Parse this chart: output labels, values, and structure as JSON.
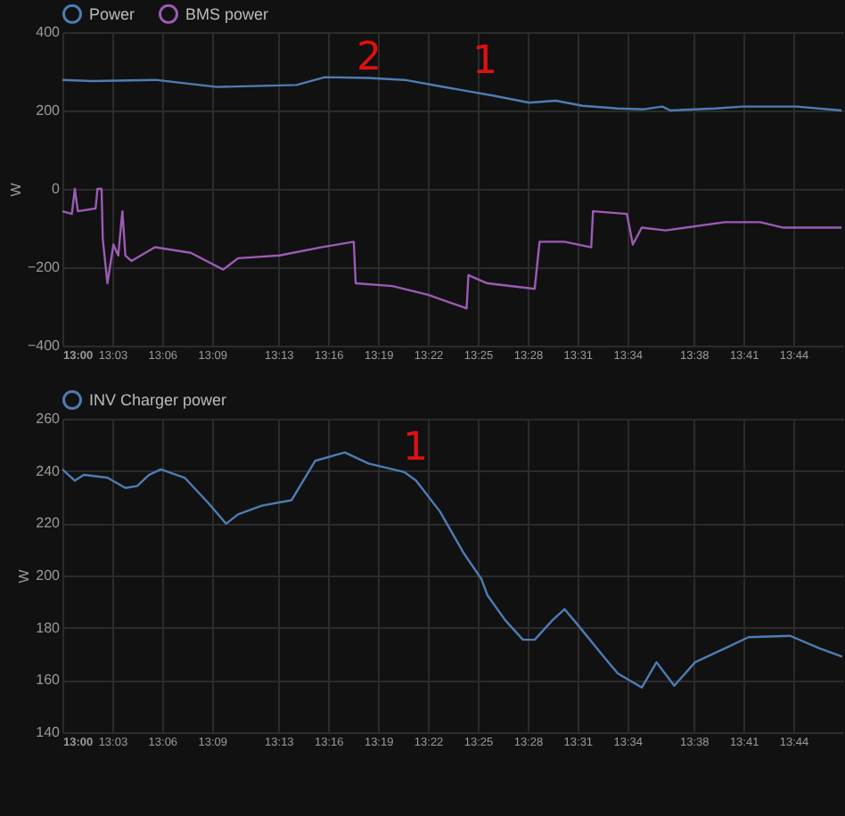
{
  "chart_data": [
    {
      "type": "line",
      "ylabel": "W",
      "annotations": [
        "2",
        "1"
      ],
      "legend": "top",
      "grid": true,
      "xlim": [
        13,
        13.7833
      ],
      "ylim": [
        -400,
        400
      ],
      "yticks": [
        -400,
        -200,
        0,
        200,
        400
      ],
      "xticks": [
        {
          "value": 13,
          "label": "13:00"
        },
        {
          "value": 13.05,
          "label": "13:03"
        },
        {
          "value": 13.1,
          "label": "13:06"
        },
        {
          "value": 13.15,
          "label": "13:09"
        },
        {
          "value": 13.2167,
          "label": "13:13"
        },
        {
          "value": 13.2667,
          "label": "13:16"
        },
        {
          "value": 13.3167,
          "label": "13:19"
        },
        {
          "value": 13.3667,
          "label": "13:22"
        },
        {
          "value": 13.4167,
          "label": "13:25"
        },
        {
          "value": 13.4667,
          "label": "13:28"
        },
        {
          "value": 13.5167,
          "label": "13:31"
        },
        {
          "value": 13.5667,
          "label": "13:34"
        },
        {
          "value": 13.6333,
          "label": "13:38"
        },
        {
          "value": 13.6833,
          "label": "13:41"
        },
        {
          "value": 13.7333,
          "label": "13:44"
        }
      ],
      "series": [
        {
          "name": "Power",
          "color": "#4d7db5",
          "x": [
            13,
            13.03,
            13.0933,
            13.155,
            13.235,
            13.2633,
            13.3067,
            13.3433,
            13.3783,
            13.4317,
            13.4683,
            13.495,
            13.5217,
            13.5567,
            13.5833,
            13.6017,
            13.61,
            13.655,
            13.6817,
            13.7367,
            13.7817
          ],
          "values": [
            278,
            275,
            278,
            260,
            265,
            285,
            283,
            278,
            262,
            238,
            220,
            225,
            212,
            205,
            203,
            210,
            200,
            205,
            210,
            210,
            200
          ]
        },
        {
          "name": "BMS power",
          "color": "#9c5bb5",
          "x": [
            13,
            13.0095,
            13.0125,
            13.0155,
            13.0333,
            13.0352,
            13.0393,
            13.0405,
            13.0452,
            13.0512,
            13.056,
            13.0602,
            13.0632,
            13.0692,
            13.0928,
            13.1287,
            13.1613,
            13.1762,
            13.2178,
            13.2595,
            13.2923,
            13.2942,
            13.331,
            13.3667,
            13.4055,
            13.4073,
            13.4263,
            13.4738,
            13.4787,
            13.5037,
            13.5305,
            13.5323,
            13.5663,
            13.5722,
            13.5812,
            13.605,
            13.6645,
            13.7,
            13.7233,
            13.7817
          ],
          "values": [
            -57,
            -64,
            0,
            -57,
            -50,
            0,
            0,
            -128,
            -241,
            -142,
            -170,
            -57,
            -170,
            -184,
            -149,
            -163,
            -206,
            -177,
            -170,
            -149,
            -135,
            -241,
            -248,
            -270,
            -305,
            -220,
            -241,
            -255,
            -135,
            -135,
            -149,
            -57,
            -64,
            -142,
            -99,
            -106,
            -85,
            -85,
            -99,
            -99
          ]
        }
      ]
    },
    {
      "type": "line",
      "ylabel": "W",
      "annotations": [
        "1"
      ],
      "legend": "top",
      "grid": true,
      "xlim": [
        13,
        13.7833
      ],
      "ylim": [
        140,
        260
      ],
      "yticks": [
        140,
        160,
        180,
        200,
        220,
        240,
        260
      ],
      "xticks": [
        {
          "value": 13,
          "label": "13:00"
        },
        {
          "value": 13.05,
          "label": "13:03"
        },
        {
          "value": 13.1,
          "label": "13:06"
        },
        {
          "value": 13.15,
          "label": "13:09"
        },
        {
          "value": 13.2167,
          "label": "13:13"
        },
        {
          "value": 13.2667,
          "label": "13:16"
        },
        {
          "value": 13.3167,
          "label": "13:19"
        },
        {
          "value": 13.3667,
          "label": "13:22"
        },
        {
          "value": 13.4167,
          "label": "13:25"
        },
        {
          "value": 13.4667,
          "label": "13:28"
        },
        {
          "value": 13.5167,
          "label": "13:31"
        },
        {
          "value": 13.5667,
          "label": "13:34"
        },
        {
          "value": 13.6333,
          "label": "13:38"
        },
        {
          "value": 13.6833,
          "label": "13:41"
        },
        {
          "value": 13.7333,
          "label": "13:44"
        }
      ],
      "series": [
        {
          "name": "INV Charger power",
          "color": "#4d7db5",
          "x": [
            13,
            13.0125,
            13.0215,
            13.0452,
            13.0632,
            13.075,
            13.0868,
            13.0988,
            13.1227,
            13.1465,
            13.1643,
            13.1762,
            13.2,
            13.2298,
            13.2537,
            13.2833,
            13.3072,
            13.3428,
            13.3548,
            13.3787,
            13.4025,
            13.4203,
            13.4263,
            13.4442,
            13.462,
            13.4738,
            13.4917,
            13.5037,
            13.5155,
            13.5453,
            13.5572,
            13.5812,
            13.596,
            13.6138,
            13.6347,
            13.6645,
            13.6883,
            13.73,
            13.7597,
            13.7823
          ],
          "values": [
            240.6,
            236.3,
            238.5,
            237.4,
            233.5,
            234.2,
            238.5,
            240.6,
            237.4,
            227.7,
            219.8,
            223.4,
            226.7,
            228.8,
            243.9,
            247.1,
            242.8,
            239.6,
            236.3,
            224.5,
            208.6,
            198.7,
            192.5,
            182.9,
            175.4,
            175.4,
            182.9,
            187.1,
            181.8,
            167.9,
            162.5,
            157.1,
            166.8,
            157.8,
            166.8,
            172.1,
            176.4,
            176.9,
            172.1,
            168.9
          ]
        }
      ]
    }
  ]
}
